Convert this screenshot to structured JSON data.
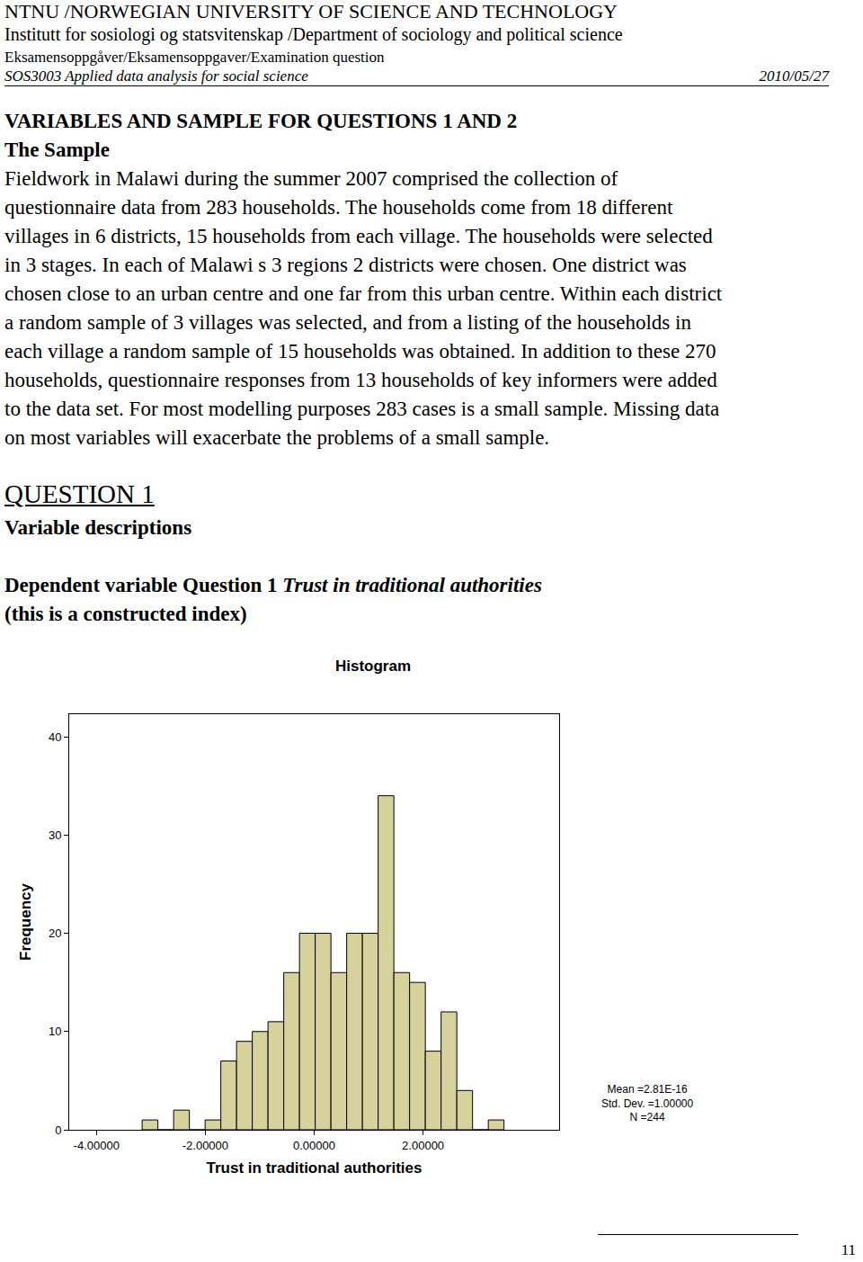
{
  "document": {
    "header": {
      "university": "NTNU /NORWEGIAN UNIVERSITY OF SCIENCE AND TECHNOLOGY",
      "department": "Institutt for sosiologi og statsvitenskap /Department of sociology and political science",
      "exam": "Eksamensoppgåver/Eksamensoppgaver/Examination question",
      "course": "SOS3003 Applied data analysis for social science",
      "date": "2010/05/27"
    },
    "heading": "VARIABLES AND SAMPLE FOR QUESTIONS 1 AND 2",
    "subheading": "The Sample",
    "paragraph": [
      "Fieldwork in Malawi during the summer 2007 comprised the collection of",
      "questionnaire data from 283 households. The households come from 18 different",
      "villages in 6 districts, 15 households from each village. The households were selected",
      "in 3 stages. In each of Malawi s 3 regions 2 districts were chosen. One district was",
      "chosen close to an urban centre and one far from this urban centre. Within each district",
      "a random sample of 3 villages was selected, and from a listing of the households in",
      "each village a random sample of 15 households was obtained. In addition to these 270",
      "households, questionnaire responses from 13 households of key informers were added",
      "to the data set. For most modelling purposes 283 cases is a small sample. Missing data",
      "on most variables will exacerbate the problems of a small sample."
    ],
    "question": "QUESTION 1",
    "section": "Variable descriptions",
    "dependent": {
      "prefix": "Dependent variable Question 1",
      "variable": "Trust in traditional authorities",
      "note": "(this is a constructed index)"
    },
    "page_number": "11"
  },
  "chart_data": {
    "type": "histogram",
    "title": "Histogram",
    "x_label": "Trust in traditional authorities",
    "y_label": "Frequency",
    "bins": [
      -3.16,
      -2.871,
      -2.582,
      -2.293,
      -2.004,
      -1.715,
      -1.426,
      -1.137,
      -0.848,
      -0.559,
      -0.27,
      0.019,
      0.308,
      0.597,
      0.886,
      1.175,
      1.464,
      1.753,
      2.042,
      2.331,
      2.62,
      2.909,
      3.198,
      3.487
    ],
    "counts": [
      1,
      0,
      2,
      0,
      1,
      7,
      9,
      10,
      11,
      16,
      20,
      20,
      16,
      20,
      20,
      34,
      16,
      15,
      8,
      12,
      4,
      0,
      1
    ],
    "color": "#d6d29c",
    "xlim": [
      -4.5,
      4.5
    ],
    "xticks": [
      {
        "value": -4,
        "label": "-4.00000"
      },
      {
        "value": -2,
        "label": "-2.00000"
      },
      {
        "value": 0,
        "label": "0.00000"
      },
      {
        "value": 2,
        "label": "2.00000"
      }
    ],
    "ylim": [
      0,
      42.3
    ],
    "yticks": [
      0,
      10,
      20,
      30,
      40
    ],
    "grid": false,
    "stats": [
      "Mean =2.81E-16",
      "Std. Dev. =1.00000",
      "N =244"
    ]
  }
}
